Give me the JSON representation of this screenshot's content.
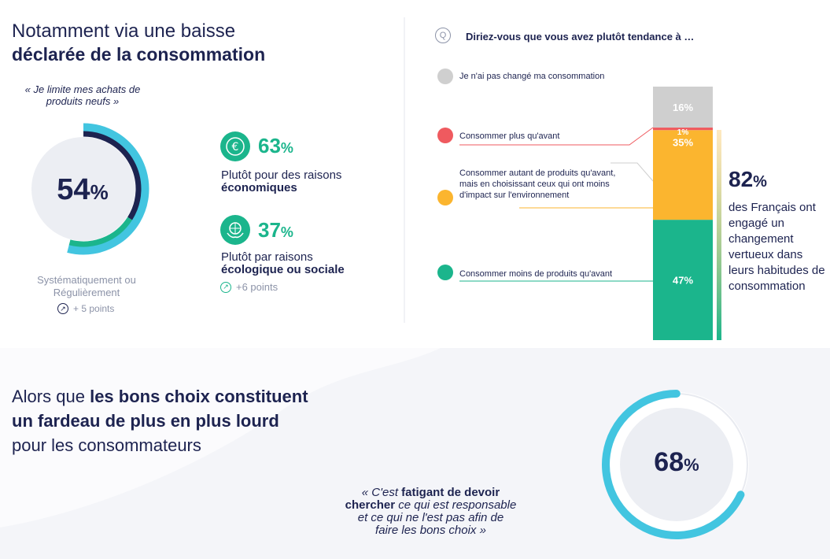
{
  "top_left": {
    "title_line1": "Notamment via une baisse",
    "title_line2": "déclarée de la consommation",
    "quote": "« Je limite mes achats de produits neufs »",
    "donut_pct": "54",
    "donut_unit": "%",
    "donut_label": "Systématiquement ou Régulièrement",
    "donut_evolution": "+ 5 points",
    "reason1_pct": "63",
    "reason1_unit": "%",
    "reason1_label": "Plutôt pour des raisons",
    "reason1_bold": "économiques",
    "reason2_pct": "37",
    "reason2_unit": "%",
    "reason2_label": "Plutôt par raisons",
    "reason2_bold": "écologique ou sociale",
    "reason2_evolution": "+6 points"
  },
  "top_right": {
    "question": "Diriez-vous que vous avez plutôt tendance à …",
    "highlight_pct": "82",
    "highlight_unit": "%",
    "highlight_text": "des Français ont engagé un changement vertueux dans leurs habitudes de consommation"
  },
  "chart_data": {
    "type": "bar",
    "stacked": true,
    "unit": "%",
    "categories": [
      "Consommer moins de produits qu'avant",
      "Consommer autant de produits qu'avant, mais en choisissant ceux qui ont moins d'impact sur l'environnement",
      "Consommer plus qu'avant",
      "Je n'ai pas changé ma consommation"
    ],
    "values": [
      47,
      35,
      1,
      16
    ],
    "colors": [
      "#1bb58c",
      "#fbb52f",
      "#ef5a5f",
      "#cfcfcf"
    ],
    "value_labels": [
      "47%",
      "35%",
      "1%",
      "16%"
    ]
  },
  "legend": {
    "item_unchanged": "Je n'ai pas changé ma consommation",
    "item_more": "Consommer plus qu'avant",
    "item_same_line1": "Consommer autant de produits qu'avant,",
    "item_same_line2": "mais en choisissant ceux qui ont moins",
    "item_same_line3": "d'impact sur l'environnement",
    "item_less": "Consommer moins de produits qu'avant"
  },
  "bottom": {
    "title_part1": "Alors que",
    "title_bold1": "les bons choix constituent",
    "title_bold2": "un fardeau de plus en plus lourd",
    "title_part2": "pour les consommateurs",
    "quote_open": "« C'est",
    "quote_bold1": "fatigant de devoir",
    "quote_bold2": "chercher",
    "quote_rest1": "ce qui est responsable",
    "quote_rest2": "et ce qui ne l'est pas afin de",
    "quote_rest3": "faire les bons choix »",
    "donut_pct": "68",
    "donut_unit": "%",
    "donut_value": 68
  },
  "colors": {
    "navy": "#1d2350",
    "teal": "#42c5e0",
    "green": "#1bb58c",
    "yellow": "#fbb52f",
    "red": "#ef5a5f",
    "grey": "#cfcfcf"
  }
}
